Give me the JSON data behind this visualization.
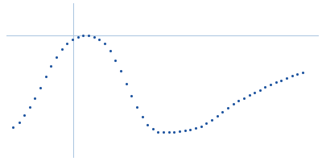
{
  "dot_color": "#1f55a0",
  "bg_color": "#ffffff",
  "axis_line_color": "#a8c4e0",
  "dot_size": 1.5,
  "figsize": [
    4.0,
    2.0
  ],
  "dpi": 100,
  "xlim": [
    -0.15,
    0.55
  ],
  "ylim": [
    -0.09,
    0.135
  ],
  "axvline_x": 0.0,
  "axhline_y": 0.088,
  "x": [
    -0.135,
    -0.122,
    -0.11,
    -0.098,
    -0.086,
    -0.074,
    -0.062,
    -0.05,
    -0.038,
    -0.026,
    -0.014,
    -0.002,
    0.01,
    0.022,
    0.034,
    0.046,
    0.058,
    0.07,
    0.082,
    0.094,
    0.106,
    0.118,
    0.13,
    0.142,
    0.154,
    0.166,
    0.178,
    0.19,
    0.202,
    0.214,
    0.226,
    0.238,
    0.25,
    0.262,
    0.274,
    0.286,
    0.298,
    0.31,
    0.322,
    0.334,
    0.346,
    0.358,
    0.37,
    0.382,
    0.394,
    0.406,
    0.418,
    0.43,
    0.442,
    0.454,
    0.466,
    0.478,
    0.49,
    0.502,
    0.514
  ],
  "y": [
    -0.046,
    -0.038,
    -0.028,
    -0.016,
    -0.003,
    0.012,
    0.028,
    0.044,
    0.057,
    0.068,
    0.076,
    0.082,
    0.086,
    0.088,
    0.088,
    0.086,
    0.082,
    0.076,
    0.066,
    0.052,
    0.036,
    0.018,
    0.0,
    -0.016,
    -0.03,
    -0.042,
    -0.048,
    -0.052,
    -0.053,
    -0.053,
    -0.052,
    -0.051,
    -0.05,
    -0.049,
    -0.047,
    -0.044,
    -0.04,
    -0.035,
    -0.029,
    -0.023,
    -0.017,
    -0.012,
    -0.007,
    -0.003,
    0.001,
    0.005,
    0.009,
    0.013,
    0.017,
    0.02,
    0.023,
    0.026,
    0.029,
    0.032,
    0.034
  ]
}
